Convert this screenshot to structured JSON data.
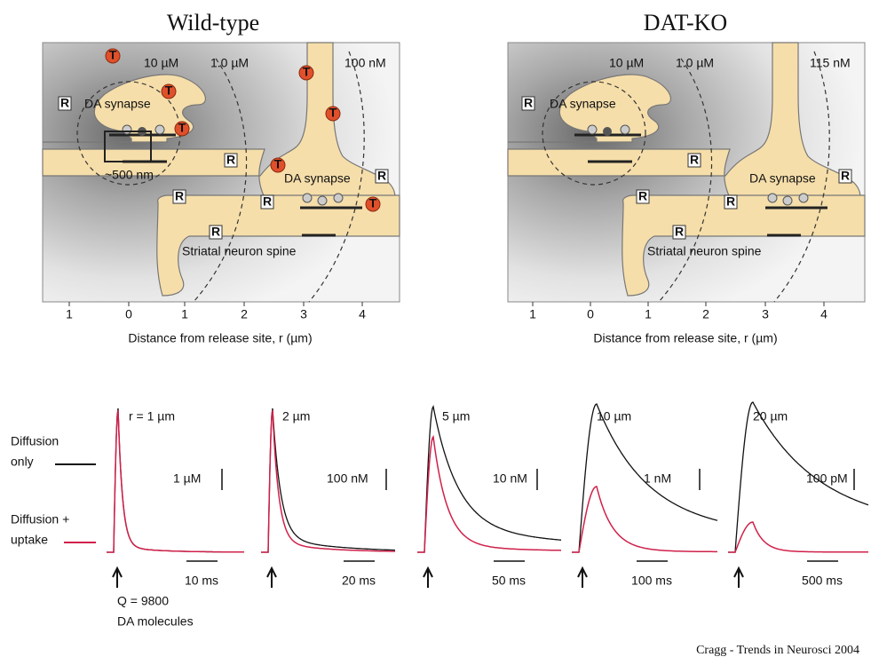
{
  "panels": [
    {
      "title": "Wild-type",
      "conc_inner": "10 µM",
      "conc_mid": "1.0 µM",
      "conc_outer": "100 nM",
      "synapse_left": "DA synapse",
      "synapse_right": "DA synapse",
      "size_label": "~500 nm",
      "spine": "Striatal neuron spine",
      "receptor": "R",
      "transporter": "T",
      "ticks": [
        "1",
        "0",
        "1",
        "2",
        "3",
        "4"
      ],
      "xlabel": "Distance from release site, r (µm)"
    },
    {
      "title": "DAT-KO",
      "conc_inner": "10 µM",
      "conc_mid": "1.0 µM",
      "conc_outer": "115 nM",
      "synapse_left": "DA synapse",
      "synapse_right": "DA synapse",
      "spine": "Striatal neuron spine",
      "receptor": "R",
      "ticks": [
        "1",
        "0",
        "1",
        "2",
        "3",
        "4"
      ],
      "xlabel": "Distance from release site, r (µm)"
    }
  ],
  "traces": {
    "legend": [
      {
        "lines": [
          "Diffusion",
          "only"
        ]
      },
      {
        "lines": [
          "Diffusion +",
          "uptake"
        ]
      }
    ],
    "panels": [
      {
        "distance": "r = 1 µm",
        "scale": "1 µM",
        "time": "10 ms"
      },
      {
        "distance": "2 µm",
        "scale": "100 nM",
        "time": "20 ms"
      },
      {
        "distance": "5 µm",
        "scale": "10 nM",
        "time": "50 ms"
      },
      {
        "distance": "10 µm",
        "scale": "1 nM",
        "time": "100 ms"
      },
      {
        "distance": "20 µm",
        "scale": "100 pM",
        "time": "500 ms"
      }
    ],
    "note": [
      "Q = 9800",
      "DA molecules"
    ]
  },
  "credit": "Cragg - Trends in Neurosci 2004"
}
